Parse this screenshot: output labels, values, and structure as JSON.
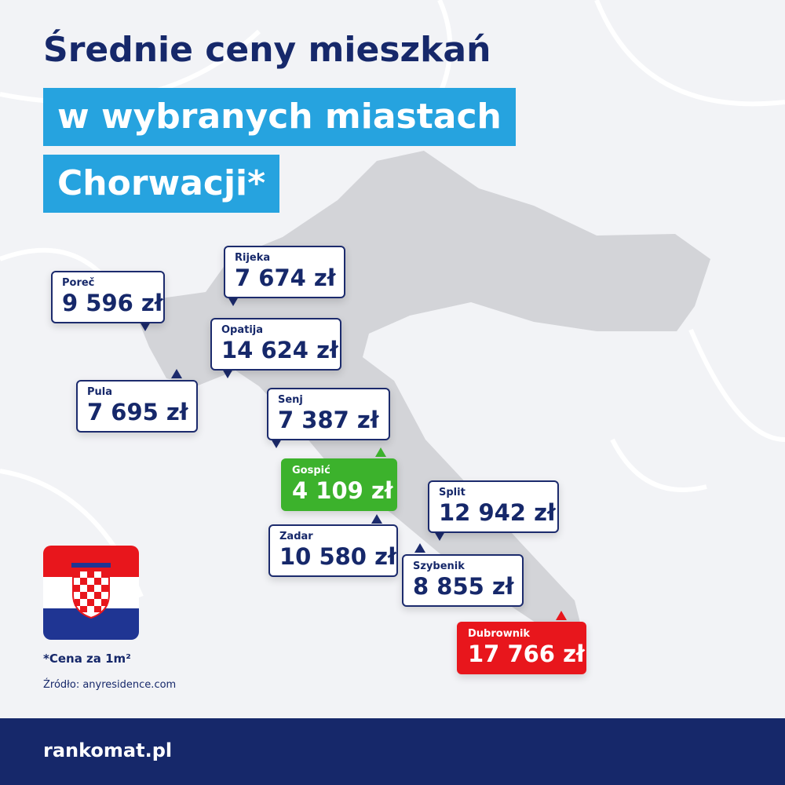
{
  "header": {
    "lines": [
      "Średnie ceny mieszkań",
      "w wybranych miastach",
      "Chorwacji*"
    ]
  },
  "cities": [
    {
      "name": "Poreč",
      "price": "9 596 zł",
      "color": "#ffffff"
    },
    {
      "name": "Rijeka",
      "price": "7 674 zł",
      "color": "#ffffff"
    },
    {
      "name": "Opatija",
      "price": "14 624 zł",
      "color": "#ffffff"
    },
    {
      "name": "Pula",
      "price": "7 695 zł",
      "color": "#ffffff"
    },
    {
      "name": "Senj",
      "price": "7 387 zł",
      "color": "#ffffff"
    },
    {
      "name": "Gospić",
      "price": "4 109 zł",
      "color": "#3cb22c"
    },
    {
      "name": "Split",
      "price": "12 942 zł",
      "color": "#ffffff"
    },
    {
      "name": "Zadar",
      "price": "10 580 zł",
      "color": "#ffffff"
    },
    {
      "name": "Szybenik",
      "price": "8 855 zł",
      "color": "#ffffff"
    },
    {
      "name": "Dubrownik",
      "price": "17 766 zł",
      "color": "#e8161c"
    }
  ],
  "footnote": "*Cena za 1m²",
  "source": "Źródło: anyresidence.com",
  "logo": "rankomat.pl"
}
